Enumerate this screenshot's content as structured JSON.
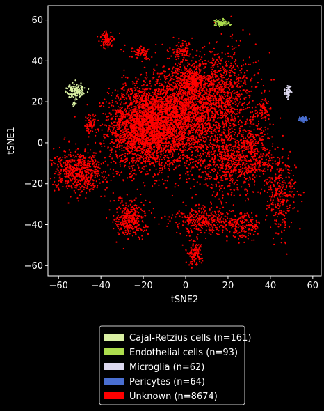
{
  "chart_data": {
    "type": "scatter",
    "title": "",
    "xlabel": "tSNE2",
    "ylabel": "tSNE1",
    "xlim": [
      -65,
      64
    ],
    "ylim": [
      -65,
      67
    ],
    "xticks": [
      -60,
      -40,
      -20,
      0,
      20,
      40,
      60
    ],
    "yticks": [
      -60,
      -40,
      -20,
      0,
      20,
      40,
      60
    ],
    "grid": false,
    "background": "#000000",
    "legend_position": "bottom-center, below plot",
    "series": [
      {
        "name": "Cajal-Retzius cells (n=161)",
        "color": "#d9f0a3",
        "count": 161,
        "clusters": [
          {
            "cx": -52,
            "cy": 25.5,
            "sx": 2.2,
            "sy": 1.6,
            "n": 150
          },
          {
            "cx": -52.5,
            "cy": 19,
            "sx": 0.4,
            "sy": 0.6,
            "n": 11
          }
        ]
      },
      {
        "name": "Endothelial cells (n=93)",
        "color": "#addd4e",
        "count": 93,
        "clusters": [
          {
            "cx": 17,
            "cy": 58.5,
            "sx": 1.8,
            "sy": 0.9,
            "n": 93
          }
        ]
      },
      {
        "name": "Microglia (n=62)",
        "color": "#dcd8ee",
        "count": 62,
        "clusters": [
          {
            "cx": 48.5,
            "cy": 25,
            "sx": 0.8,
            "sy": 1.3,
            "n": 62
          }
        ]
      },
      {
        "name": "Pericytes (n=64)",
        "color": "#4a6fd1",
        "count": 64,
        "clusters": [
          {
            "cx": 55.5,
            "cy": 11.5,
            "sx": 1.0,
            "sy": 0.6,
            "n": 64
          }
        ]
      },
      {
        "name": "Unknown (n=8674)",
        "color": "#ff0000",
        "count": 8674,
        "clusters": [
          {
            "cx": -20,
            "cy": 8,
            "sx": 8,
            "sy": 10,
            "n": 2200
          },
          {
            "cx": -3,
            "cy": 12,
            "sx": 9,
            "sy": 12,
            "n": 1900
          },
          {
            "cx": 15,
            "cy": 22,
            "sx": 9,
            "sy": 12,
            "n": 1200
          },
          {
            "cx": 20,
            "cy": -10,
            "sx": 8,
            "sy": 8,
            "n": 600
          },
          {
            "cx": 33,
            "cy": -5,
            "sx": 5,
            "sy": 8,
            "n": 300
          },
          {
            "cx": -50,
            "cy": -14,
            "sx": 6,
            "sy": 5,
            "n": 600
          },
          {
            "cx": -26,
            "cy": -37,
            "sx": 3.5,
            "sy": 4.5,
            "n": 350
          },
          {
            "cx": 10,
            "cy": -38,
            "sx": 8,
            "sy": 3.5,
            "n": 350
          },
          {
            "cx": 28,
            "cy": -40,
            "sx": 4,
            "sy": 3,
            "n": 160
          },
          {
            "cx": 45,
            "cy": -25,
            "sx": 3.5,
            "sy": 10,
            "n": 300
          },
          {
            "cx": 4,
            "cy": -54,
            "sx": 2,
            "sy": 3,
            "n": 120
          },
          {
            "cx": -37,
            "cy": 50,
            "sx": 1.8,
            "sy": 2,
            "n": 80
          },
          {
            "cx": -45,
            "cy": 9,
            "sx": 1.2,
            "sy": 2.5,
            "n": 70
          },
          {
            "cx": 37,
            "cy": 15,
            "sx": 1.5,
            "sy": 3,
            "n": 60
          },
          {
            "cx": -21,
            "cy": 44,
            "sx": 3,
            "sy": 1.5,
            "n": 70
          },
          {
            "cx": -1,
            "cy": 45,
            "sx": 2.2,
            "sy": 2,
            "n": 70
          },
          {
            "cx": 3,
            "cy": 30,
            "sx": 3,
            "sy": 3,
            "n": 244
          },
          {
            "cx": -12,
            "cy": -8,
            "sx": 6,
            "sy": 5,
            "n": 0
          }
        ]
      }
    ]
  }
}
